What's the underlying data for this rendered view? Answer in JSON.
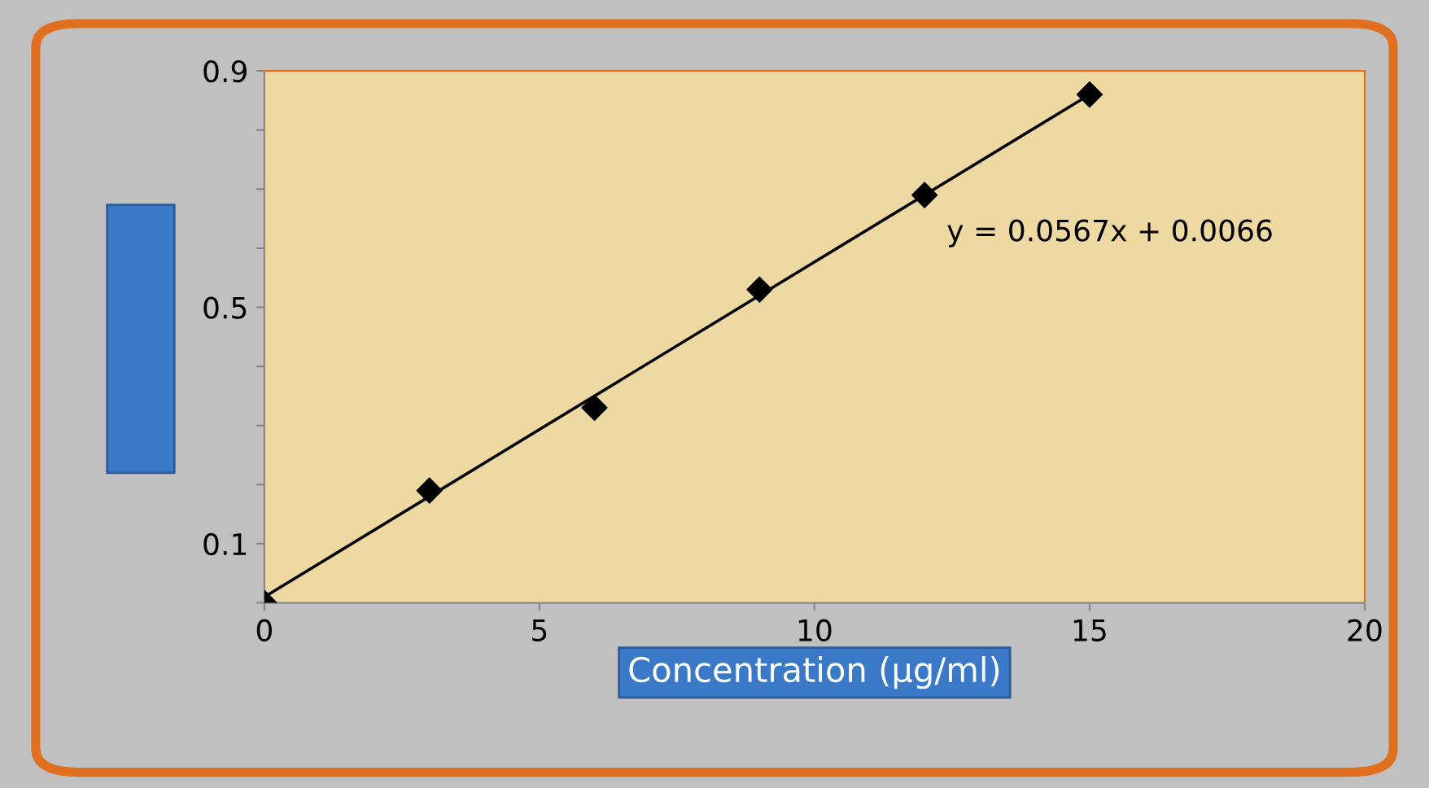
{
  "chart_data": {
    "type": "scatter",
    "xlabel": "Concentration (µg/ml)",
    "x": [
      0,
      3,
      6,
      9,
      12,
      15
    ],
    "series": [
      {
        "color": "#000000",
        "marker": "diamond",
        "values": [
          0.0,
          0.19,
          0.33,
          0.53,
          0.69,
          0.86
        ]
      },
      {
        "type": "line",
        "color": "#000000",
        "x": [
          0,
          15
        ],
        "values": [
          0.01,
          0.86
        ]
      }
    ],
    "xlim": [
      0,
      20
    ],
    "xticks": [
      0,
      5,
      10,
      15,
      20
    ],
    "ylim": [
      0,
      0.9
    ],
    "yticks": [
      {
        "value": 0,
        "label": null
      },
      0.1,
      {
        "value": 0.2,
        "label": null
      },
      {
        "value": 0.3,
        "label": null
      },
      {
        "value": 0.4,
        "label": null
      },
      0.5,
      {
        "value": 0.6,
        "label": null
      },
      {
        "value": 0.7,
        "label": null
      },
      {
        "value": 0.8,
        "label": null
      },
      0.9
    ],
    "annotations": [
      "y = 0.0567x + 0.0066"
    ],
    "grid": false,
    "legend": false
  }
}
